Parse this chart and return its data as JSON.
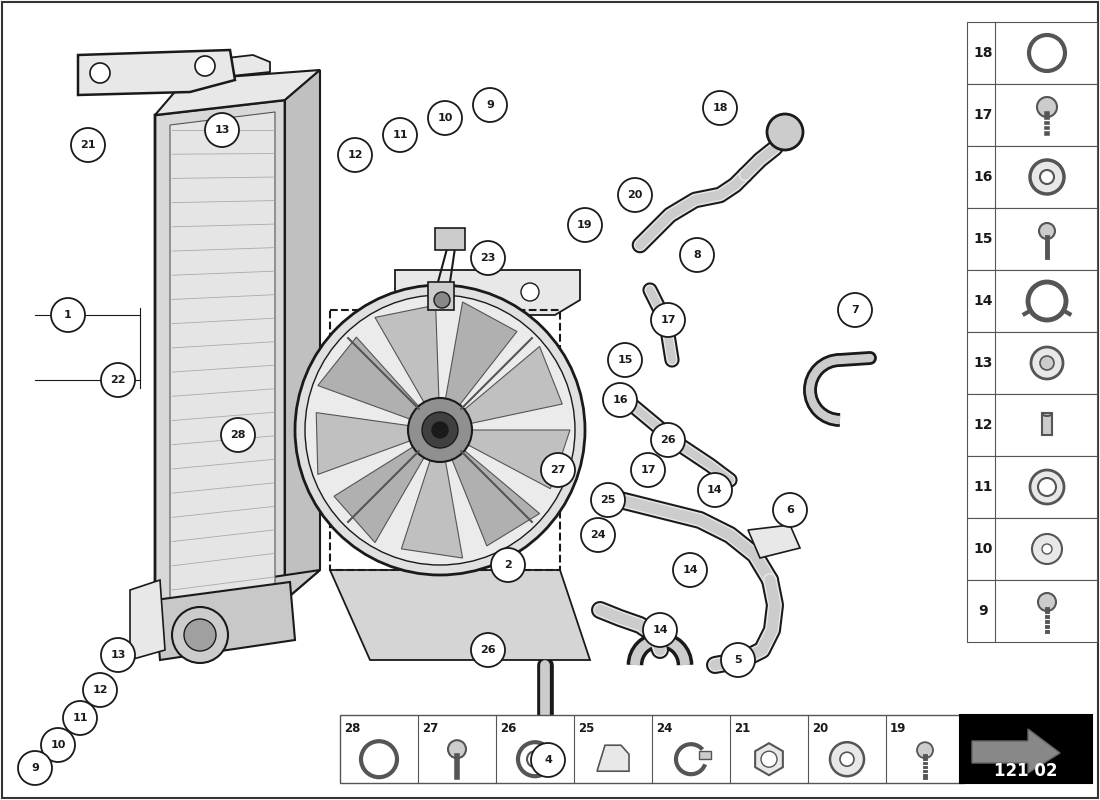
{
  "diagram_id": "121 02",
  "bg_color": "#ffffff",
  "lc": "#1a1a1a",
  "fl": "#e8e8e8",
  "fm": "#cccccc",
  "fd": "#aaaaaa",
  "dg": "#555555",
  "right_panel_items": [
    18,
    17,
    16,
    15,
    14,
    13,
    12,
    11,
    10,
    9
  ],
  "bottom_panel_items": [
    28,
    27,
    26,
    25,
    24,
    21,
    20,
    19
  ],
  "figsize": [
    11.0,
    8.0
  ],
  "dpi": 100
}
